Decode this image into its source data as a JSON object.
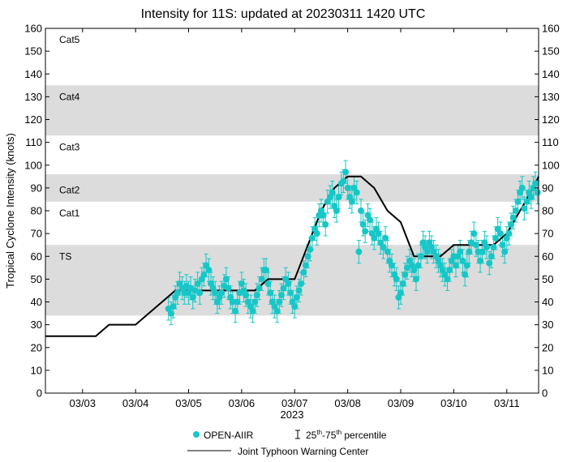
{
  "chart_data": {
    "type": "scatter",
    "title": "Intensity for 11S: updated at 20230311 1420 UTC",
    "ylabel": "Tropical Cyclone Intensity (knots)",
    "xlabel": "2023",
    "ylim": [
      0,
      160
    ],
    "yticks": [
      0,
      10,
      20,
      30,
      40,
      50,
      60,
      70,
      80,
      90,
      100,
      110,
      120,
      130,
      140,
      150,
      160
    ],
    "xlim": [
      2.3,
      11.6
    ],
    "xticks": [
      3,
      4,
      5,
      6,
      7,
      8,
      9,
      10,
      11
    ],
    "xtick_labels": [
      "03/03",
      "03/04",
      "03/05",
      "03/06",
      "03/07",
      "03/08",
      "03/09",
      "03/10",
      "03/11"
    ],
    "category_bands": [
      {
        "label": "TS",
        "min": 34,
        "max": 65,
        "shaded": true,
        "label_at": 60
      },
      {
        "label": "Cat1",
        "min": 65,
        "max": 84,
        "shaded": false,
        "label_at": 79
      },
      {
        "label": "Cat2",
        "min": 84,
        "max": 96,
        "shaded": true,
        "label_at": 89
      },
      {
        "label": "Cat3",
        "min": 96,
        "max": 113,
        "shaded": false,
        "label_at": 108
      },
      {
        "label": "Cat4",
        "min": 113,
        "max": 135,
        "shaded": true,
        "label_at": 130
      },
      {
        "label": "Cat5",
        "min": 135,
        "max": 160,
        "shaded": false,
        "label_at": 155
      }
    ],
    "legend": {
      "open_aiir": "OPEN-AIIR",
      "percentile_base": "25",
      "percentile_sup1": "th",
      "percentile_mid": "-75",
      "percentile_sup2": "th",
      "percentile_end": " percentile",
      "jtwc": "Joint Typhoon Warning Center"
    },
    "colors": {
      "open_aiir": "#17c7c7",
      "jtwc": "#000000",
      "band": "#dcdcdc"
    },
    "series": [
      {
        "name": "Joint Typhoon Warning Center",
        "style": "line",
        "points": [
          [
            2.3,
            25
          ],
          [
            3.0,
            25
          ],
          [
            3.25,
            25
          ],
          [
            3.5,
            30
          ],
          [
            4.0,
            30
          ],
          [
            4.75,
            45
          ],
          [
            6.0,
            45
          ],
          [
            6.25,
            45
          ],
          [
            6.5,
            50
          ],
          [
            6.75,
            50
          ],
          [
            7.0,
            50
          ],
          [
            7.25,
            65
          ],
          [
            7.5,
            80
          ],
          [
            7.75,
            90
          ],
          [
            8.0,
            95
          ],
          [
            8.25,
            95
          ],
          [
            8.5,
            90
          ],
          [
            8.75,
            80
          ],
          [
            9.0,
            75
          ],
          [
            9.25,
            60
          ],
          [
            9.75,
            60
          ],
          [
            10.0,
            65
          ],
          [
            10.75,
            65
          ],
          [
            11.0,
            70
          ],
          [
            11.25,
            80
          ],
          [
            11.5,
            90
          ],
          [
            11.6,
            95
          ]
        ]
      },
      {
        "name": "OPEN-AIIR",
        "style": "scatter",
        "iqr": [
          -5,
          5
        ],
        "points": [
          [
            4.62,
            37
          ],
          [
            4.67,
            35
          ],
          [
            4.71,
            38
          ],
          [
            4.75,
            42
          ],
          [
            4.79,
            44
          ],
          [
            4.83,
            48
          ],
          [
            4.88,
            46
          ],
          [
            4.92,
            44
          ],
          [
            4.96,
            47
          ],
          [
            5.0,
            44
          ],
          [
            5.04,
            46
          ],
          [
            5.08,
            42
          ],
          [
            5.12,
            45
          ],
          [
            5.17,
            48
          ],
          [
            5.21,
            44
          ],
          [
            5.25,
            50
          ],
          [
            5.29,
            52
          ],
          [
            5.33,
            56
          ],
          [
            5.38,
            54
          ],
          [
            5.42,
            48
          ],
          [
            5.46,
            46
          ],
          [
            5.5,
            44
          ],
          [
            5.54,
            40
          ],
          [
            5.58,
            42
          ],
          [
            5.62,
            44
          ],
          [
            5.67,
            47
          ],
          [
            5.71,
            50
          ],
          [
            5.75,
            46
          ],
          [
            5.79,
            42
          ],
          [
            5.83,
            40
          ],
          [
            5.88,
            36
          ],
          [
            5.92,
            40
          ],
          [
            5.96,
            44
          ],
          [
            6.0,
            48
          ],
          [
            6.04,
            45
          ],
          [
            6.08,
            43
          ],
          [
            6.12,
            40
          ],
          [
            6.17,
            38
          ],
          [
            6.21,
            36
          ],
          [
            6.25,
            40
          ],
          [
            6.29,
            43
          ],
          [
            6.33,
            46
          ],
          [
            6.38,
            50
          ],
          [
            6.42,
            54
          ],
          [
            6.46,
            54
          ],
          [
            6.5,
            48
          ],
          [
            6.54,
            44
          ],
          [
            6.58,
            40
          ],
          [
            6.62,
            38
          ],
          [
            6.67,
            36
          ],
          [
            6.71,
            40
          ],
          [
            6.75,
            43
          ],
          [
            6.79,
            46
          ],
          [
            6.83,
            50
          ],
          [
            6.88,
            48
          ],
          [
            6.92,
            44
          ],
          [
            6.96,
            40
          ],
          [
            7.0,
            38
          ],
          [
            7.04,
            42
          ],
          [
            7.08,
            45
          ],
          [
            7.12,
            48
          ],
          [
            7.17,
            53
          ],
          [
            7.21,
            56
          ],
          [
            7.25,
            60
          ],
          [
            7.29,
            63
          ],
          [
            7.33,
            68
          ],
          [
            7.38,
            72
          ],
          [
            7.42,
            70
          ],
          [
            7.46,
            78
          ],
          [
            7.5,
            80
          ],
          [
            7.54,
            78
          ],
          [
            7.58,
            74
          ],
          [
            7.62,
            84
          ],
          [
            7.67,
            86
          ],
          [
            7.71,
            88
          ],
          [
            7.75,
            82
          ],
          [
            7.79,
            80
          ],
          [
            7.83,
            86
          ],
          [
            7.88,
            92
          ],
          [
            7.92,
            93
          ],
          [
            7.96,
            97
          ],
          [
            8.0,
            90
          ],
          [
            8.04,
            86
          ],
          [
            8.08,
            84
          ],
          [
            8.12,
            90
          ],
          [
            8.17,
            88
          ],
          [
            8.21,
            62
          ],
          [
            8.25,
            80
          ],
          [
            8.29,
            74
          ],
          [
            8.33,
            71
          ],
          [
            8.38,
            78
          ],
          [
            8.42,
            76
          ],
          [
            8.46,
            70
          ],
          [
            8.5,
            68
          ],
          [
            8.54,
            72
          ],
          [
            8.58,
            70
          ],
          [
            8.62,
            66
          ],
          [
            8.67,
            64
          ],
          [
            8.71,
            68
          ],
          [
            8.75,
            62
          ],
          [
            8.79,
            58
          ],
          [
            8.83,
            56
          ],
          [
            8.88,
            52
          ],
          [
            8.92,
            50
          ],
          [
            8.96,
            42
          ],
          [
            9.0,
            44
          ],
          [
            9.04,
            48
          ],
          [
            9.08,
            52
          ],
          [
            9.12,
            55
          ],
          [
            9.17,
            58
          ],
          [
            9.21,
            56
          ],
          [
            9.25,
            54
          ],
          [
            9.29,
            50
          ],
          [
            9.33,
            56
          ],
          [
            9.38,
            60
          ],
          [
            9.42,
            66
          ],
          [
            9.46,
            64
          ],
          [
            9.5,
            62
          ],
          [
            9.54,
            66
          ],
          [
            9.58,
            64
          ],
          [
            9.62,
            62
          ],
          [
            9.67,
            60
          ],
          [
            9.71,
            58
          ],
          [
            9.75,
            56
          ],
          [
            9.79,
            54
          ],
          [
            9.83,
            52
          ],
          [
            9.88,
            50
          ],
          [
            9.92,
            54
          ],
          [
            9.96,
            58
          ],
          [
            10.0,
            60
          ],
          [
            10.04,
            56
          ],
          [
            10.08,
            60
          ],
          [
            10.12,
            62
          ],
          [
            10.17,
            58
          ],
          [
            10.21,
            52
          ],
          [
            10.25,
            56
          ],
          [
            10.29,
            62
          ],
          [
            10.33,
            66
          ],
          [
            10.38,
            70
          ],
          [
            10.42,
            65
          ],
          [
            10.46,
            62
          ],
          [
            10.5,
            58
          ],
          [
            10.54,
            62
          ],
          [
            10.58,
            66
          ],
          [
            10.62,
            64
          ],
          [
            10.67,
            57
          ],
          [
            10.71,
            60
          ],
          [
            10.75,
            64
          ],
          [
            10.79,
            68
          ],
          [
            10.83,
            72
          ],
          [
            10.88,
            70
          ],
          [
            10.92,
            65
          ],
          [
            10.96,
            62
          ],
          [
            11.0,
            68
          ],
          [
            11.04,
            70
          ],
          [
            11.08,
            74
          ],
          [
            11.12,
            77
          ],
          [
            11.17,
            80
          ],
          [
            11.21,
            84
          ],
          [
            11.25,
            88
          ],
          [
            11.29,
            90
          ],
          [
            11.33,
            81
          ],
          [
            11.38,
            84
          ],
          [
            11.42,
            88
          ],
          [
            11.46,
            86
          ],
          [
            11.5,
            90
          ],
          [
            11.54,
            92
          ],
          [
            11.58,
            88
          ]
        ]
      }
    ]
  }
}
